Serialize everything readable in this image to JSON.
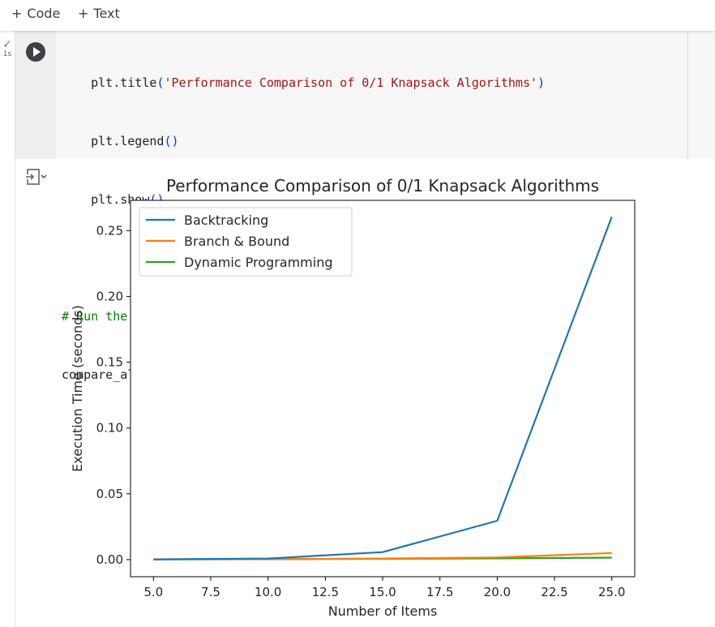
{
  "toolbar": {
    "code_label": "Code",
    "text_label": "Text"
  },
  "cell": {
    "status_check": "✓",
    "exec_time": "1s",
    "code_lines": {
      "l1": {
        "pre": "    plt.title",
        "open": "(",
        "str": "'Performance Comparison of 0/1 Knapsack Algorithms'",
        "close": ")"
      },
      "l2": {
        "pre": "    plt.legend",
        "paren": "()"
      },
      "l3": {
        "pre": "    plt.show",
        "paren": "()"
      },
      "l5": {
        "comment": "# Run the comparison"
      },
      "l6": {
        "pre": "compare_algorithms",
        "paren": "()"
      }
    }
  },
  "colors": {
    "backtracking": "#1f77b4",
    "branch_bound": "#ff7f0e",
    "dynamic_programming": "#2ca02c"
  },
  "chart_data": {
    "type": "line",
    "title": "Performance Comparison of 0/1 Knapsack Algorithms",
    "xlabel": "Number of Items",
    "ylabel": "Execution Time (seconds)",
    "x": [
      5,
      10,
      15,
      20,
      25
    ],
    "xlim": [
      4.0,
      26.0
    ],
    "ylim": [
      -0.013,
      0.273
    ],
    "xticks": [
      5.0,
      7.5,
      10.0,
      12.5,
      15.0,
      17.5,
      20.0,
      22.5,
      25.0
    ],
    "xtick_labels": [
      "5.0",
      "7.5",
      "10.0",
      "12.5",
      "15.0",
      "17.5",
      "20.0",
      "22.5",
      "25.0"
    ],
    "yticks": [
      0.0,
      0.05,
      0.1,
      0.15,
      0.2,
      0.25
    ],
    "ytick_labels": [
      "0.00",
      "0.05",
      "0.10",
      "0.15",
      "0.20",
      "0.25"
    ],
    "grid": false,
    "legend_position": "upper-left",
    "series": [
      {
        "name": "Backtracking",
        "values": [
          0.0002,
          0.0008,
          0.0057,
          0.0295,
          0.2605
        ]
      },
      {
        "name": "Branch & Bound",
        "values": [
          0.0001,
          0.0004,
          0.0008,
          0.0017,
          0.005
        ]
      },
      {
        "name": "Dynamic Programming",
        "values": [
          0.0001,
          0.0003,
          0.0006,
          0.0009,
          0.0015
        ]
      }
    ]
  }
}
